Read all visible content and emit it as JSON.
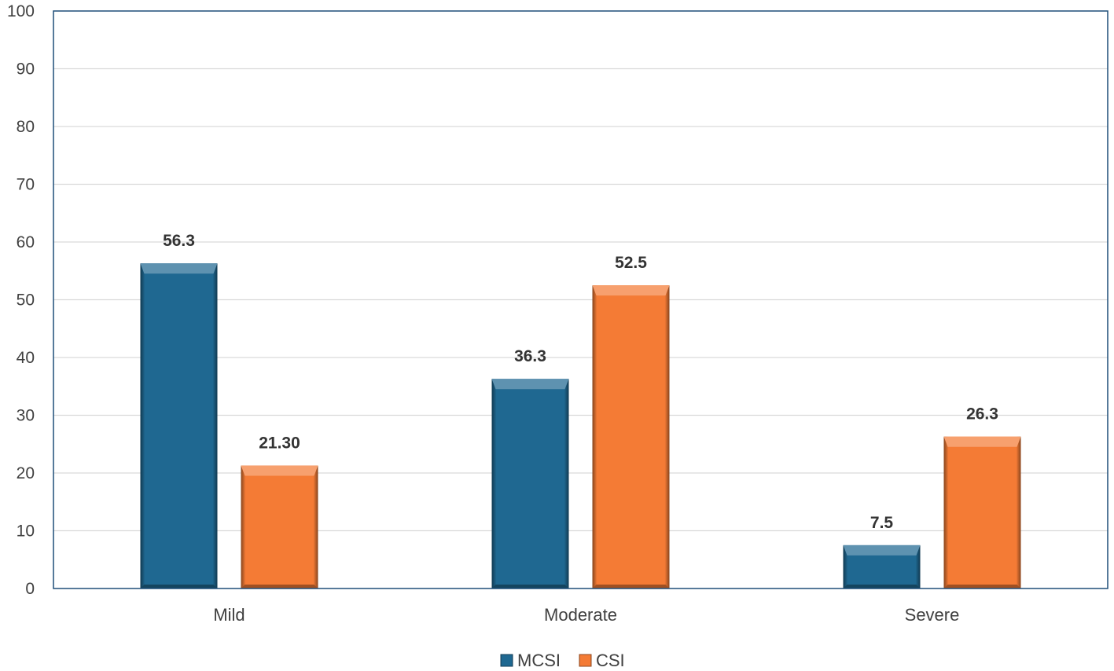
{
  "chart_data": {
    "type": "bar",
    "categories": [
      "Mild",
      "Moderate",
      "Severe"
    ],
    "series": [
      {
        "name": "MCSI",
        "values": [
          56.3,
          36.3,
          7.5
        ],
        "labels": [
          "56.3",
          "36.3",
          "7.5"
        ],
        "color": "#1F6891"
      },
      {
        "name": "CSI",
        "values": [
          21.3,
          52.5,
          26.3
        ],
        "labels": [
          "21.30",
          "52.5",
          "26.3"
        ],
        "color": "#F47B35"
      }
    ],
    "ylim": [
      0,
      100
    ],
    "yticks": [
      "0",
      "10",
      "20",
      "30",
      "40",
      "50",
      "60",
      "70",
      "80",
      "90",
      "100"
    ],
    "grid": true,
    "legend": "bottom-center",
    "title": "",
    "xlabel": "",
    "ylabel": ""
  }
}
